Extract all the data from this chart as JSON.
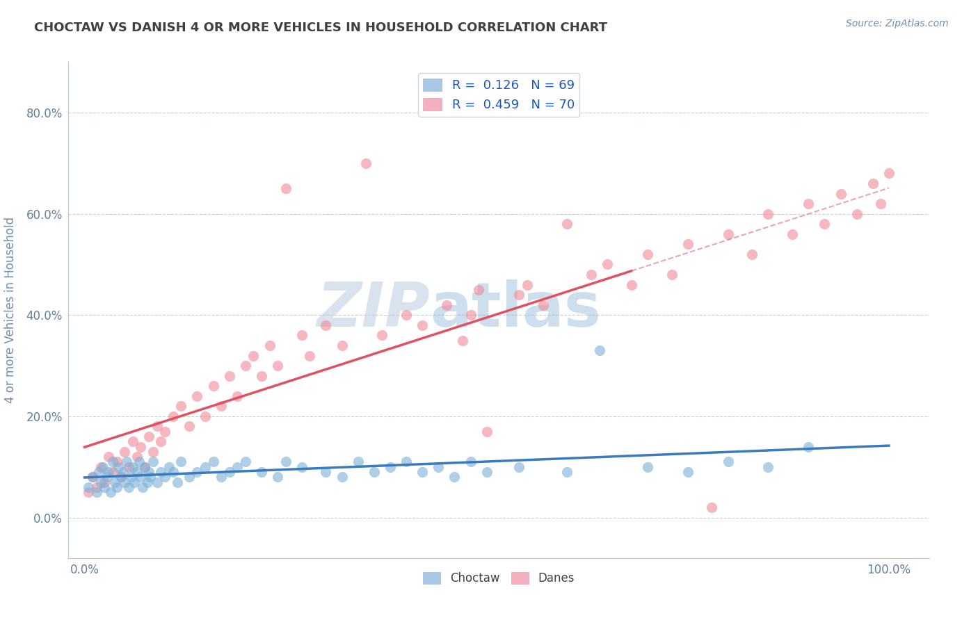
{
  "title": "CHOCTAW VS DANISH 4 OR MORE VEHICLES IN HOUSEHOLD CORRELATION CHART",
  "source_text": "Source: ZipAtlas.com",
  "xlabel": "",
  "ylabel": "4 or more Vehicles in Household",
  "xlim": [
    0.0,
    100.0
  ],
  "ylim": [
    -5.0,
    85.0
  ],
  "yticks": [
    0,
    20,
    40,
    60,
    80
  ],
  "ytick_labels": [
    "0.0%",
    "20.0%",
    "40.0%",
    "60.0%",
    "80.0%"
  ],
  "xtick_labels": [
    "0.0%",
    "",
    "",
    "",
    "",
    "",
    "",
    "",
    "",
    "",
    "100.0%"
  ],
  "choctaw_patch_color": "#a8c8e8",
  "danes_patch_color": "#f4b0c0",
  "choctaw_scatter_color": "#7ab0d8",
  "danes_scatter_color": "#f08898",
  "choctaw_line_color": "#3a7abf",
  "danes_line_color": "#e05060",
  "watermark_zip": "ZIP",
  "watermark_atlas": "atlas",
  "watermark_color": "#c8d8ec",
  "background_color": "#ffffff",
  "grid_color": "#c8d0dc",
  "title_color": "#404040",
  "axis_label_color": "#7090b0",
  "tick_color": "#6080a0",
  "source_color": "#7090b0",
  "choctaw_R": 0.126,
  "danes_R": 0.459,
  "choctaw_N": 69,
  "danes_N": 70,
  "choctaw_x": [
    0.5,
    1.0,
    1.5,
    1.8,
    2.0,
    2.3,
    2.5,
    2.8,
    3.0,
    3.2,
    3.5,
    3.8,
    4.0,
    4.2,
    4.5,
    4.8,
    5.0,
    5.2,
    5.5,
    5.8,
    6.0,
    6.2,
    6.5,
    6.8,
    7.0,
    7.2,
    7.5,
    7.8,
    8.0,
    8.2,
    8.5,
    9.0,
    9.5,
    10.0,
    10.5,
    11.0,
    11.5,
    12.0,
    13.0,
    14.0,
    15.0,
    16.0,
    17.0,
    18.0,
    19.0,
    20.0,
    22.0,
    24.0,
    25.0,
    27.0,
    30.0,
    32.0,
    34.0,
    36.0,
    38.0,
    40.0,
    42.0,
    44.0,
    46.0,
    48.0,
    50.0,
    54.0,
    60.0,
    64.0,
    70.0,
    75.0,
    80.0,
    85.0,
    90.0
  ],
  "choctaw_y": [
    6.0,
    8.0,
    5.0,
    9.0,
    7.0,
    10.0,
    6.0,
    8.0,
    9.0,
    5.0,
    11.0,
    7.0,
    6.0,
    10.0,
    8.0,
    9.0,
    7.0,
    11.0,
    6.0,
    8.0,
    10.0,
    7.0,
    9.0,
    11.0,
    8.0,
    6.0,
    10.0,
    7.0,
    9.0,
    8.0,
    11.0,
    7.0,
    9.0,
    8.0,
    10.0,
    9.0,
    7.0,
    11.0,
    8.0,
    9.0,
    10.0,
    11.0,
    8.0,
    9.0,
    10.0,
    11.0,
    9.0,
    8.0,
    11.0,
    10.0,
    9.0,
    8.0,
    11.0,
    9.0,
    10.0,
    11.0,
    9.0,
    10.0,
    8.0,
    11.0,
    9.0,
    10.0,
    9.0,
    33.0,
    10.0,
    9.0,
    11.0,
    10.0,
    14.0
  ],
  "danes_x": [
    0.5,
    1.0,
    1.5,
    2.0,
    2.5,
    3.0,
    3.5,
    4.0,
    4.5,
    5.0,
    5.5,
    6.0,
    6.5,
    7.0,
    7.5,
    8.0,
    8.5,
    9.0,
    9.5,
    10.0,
    11.0,
    12.0,
    13.0,
    14.0,
    15.0,
    16.0,
    17.0,
    18.0,
    19.0,
    20.0,
    21.0,
    22.0,
    23.0,
    24.0,
    25.0,
    27.0,
    28.0,
    30.0,
    32.0,
    35.0,
    37.0,
    40.0,
    42.0,
    45.0,
    47.0,
    48.0,
    49.0,
    50.0,
    54.0,
    55.0,
    57.0,
    60.0,
    63.0,
    65.0,
    68.0,
    70.0,
    73.0,
    75.0,
    78.0,
    80.0,
    83.0,
    85.0,
    88.0,
    90.0,
    92.0,
    94.0,
    96.0,
    98.0,
    99.0,
    100.0
  ],
  "danes_y": [
    5.0,
    8.0,
    6.0,
    10.0,
    7.0,
    12.0,
    9.0,
    11.0,
    8.0,
    13.0,
    10.0,
    15.0,
    12.0,
    14.0,
    10.0,
    16.0,
    13.0,
    18.0,
    15.0,
    17.0,
    20.0,
    22.0,
    18.0,
    24.0,
    20.0,
    26.0,
    22.0,
    28.0,
    24.0,
    30.0,
    32.0,
    28.0,
    34.0,
    30.0,
    65.0,
    36.0,
    32.0,
    38.0,
    34.0,
    70.0,
    36.0,
    40.0,
    38.0,
    42.0,
    35.0,
    40.0,
    45.0,
    17.0,
    44.0,
    46.0,
    42.0,
    58.0,
    48.0,
    50.0,
    46.0,
    52.0,
    48.0,
    54.0,
    2.0,
    56.0,
    52.0,
    60.0,
    56.0,
    62.0,
    58.0,
    64.0,
    60.0,
    66.0,
    62.0,
    68.0
  ]
}
